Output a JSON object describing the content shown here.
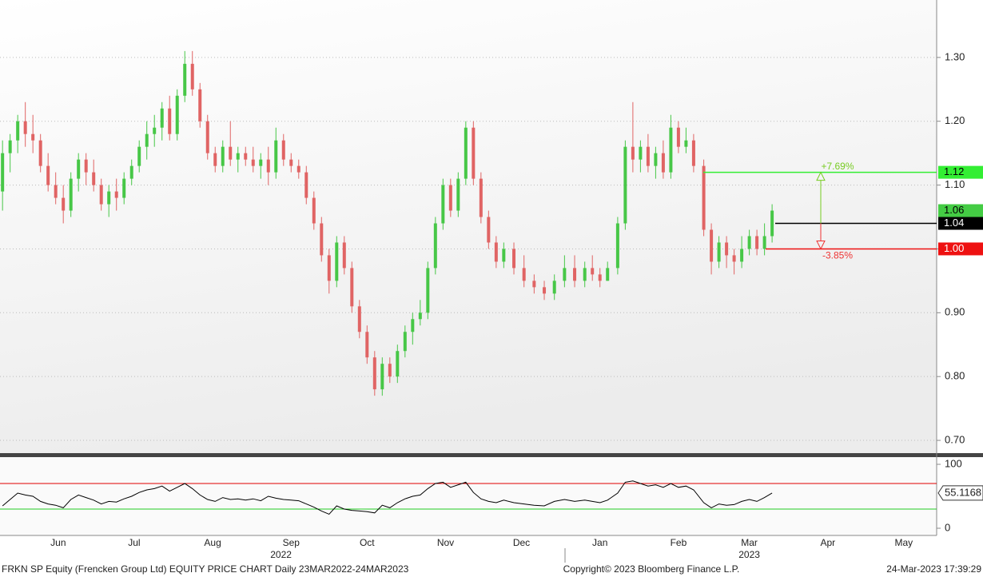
{
  "chart_data": [
    {
      "type": "candlestick",
      "x": [
        1,
        4,
        7,
        10,
        13,
        16,
        19,
        22,
        25,
        28,
        31,
        34,
        37,
        40,
        43,
        46,
        49,
        52,
        55,
        58,
        61,
        64,
        67,
        70,
        73,
        76,
        79,
        82,
        85,
        88,
        91,
        94,
        97,
        100,
        103,
        106,
        109,
        112,
        115,
        118,
        121,
        124,
        127,
        130,
        133,
        136,
        139,
        142,
        145,
        148,
        151,
        154,
        157,
        160,
        163,
        166,
        169,
        172,
        175,
        178,
        181,
        184,
        187,
        190,
        193,
        196,
        199,
        203,
        207,
        211,
        215,
        219,
        223,
        227,
        231,
        234,
        237,
        240,
        244,
        247,
        250,
        253,
        256,
        259,
        262,
        265,
        268,
        271,
        274,
        278,
        281,
        284,
        287,
        290,
        293,
        296,
        299,
        302,
        305
      ],
      "open": [
        1.09,
        1.15,
        1.17,
        1.2,
        1.18,
        1.17,
        1.13,
        1.1,
        1.08,
        1.06,
        1.11,
        1.14,
        1.12,
        1.1,
        1.07,
        1.09,
        1.08,
        1.11,
        1.13,
        1.16,
        1.18,
        1.19,
        1.22,
        1.18,
        1.24,
        1.29,
        1.25,
        1.2,
        1.15,
        1.13,
        1.16,
        1.14,
        1.15,
        1.14,
        1.13,
        1.14,
        1.12,
        1.17,
        1.14,
        1.13,
        1.12,
        1.08,
        1.04,
        0.99,
        0.95,
        1.01,
        0.97,
        0.91,
        0.87,
        0.83,
        0.78,
        0.82,
        0.8,
        0.84,
        0.87,
        0.89,
        0.9,
        0.97,
        1.04,
        1.1,
        1.06,
        1.11,
        1.19,
        1.11,
        1.05,
        1.01,
        0.98,
        1.0,
        0.97,
        0.95,
        0.94,
        0.93,
        0.95,
        0.97,
        0.95,
        0.97,
        0.96,
        0.95,
        0.97,
        1.04,
        1.16,
        1.14,
        1.16,
        1.13,
        1.15,
        1.12,
        1.19,
        1.16,
        1.17,
        1.13,
        1.03,
        0.98,
        1.01,
        0.99,
        0.98,
        1.0,
        1.02,
        1.0,
        1.02
      ],
      "high": [
        1.17,
        1.18,
        1.21,
        1.23,
        1.21,
        1.18,
        1.15,
        1.12,
        1.1,
        1.12,
        1.15,
        1.15,
        1.14,
        1.11,
        1.1,
        1.11,
        1.12,
        1.14,
        1.17,
        1.2,
        1.21,
        1.23,
        1.24,
        1.25,
        1.31,
        1.31,
        1.26,
        1.21,
        1.16,
        1.17,
        1.2,
        1.16,
        1.16,
        1.16,
        1.15,
        1.16,
        1.19,
        1.18,
        1.15,
        1.14,
        1.13,
        1.09,
        1.05,
        1.0,
        1.02,
        1.02,
        0.98,
        0.92,
        0.88,
        0.84,
        0.83,
        0.83,
        0.85,
        0.88,
        0.9,
        0.92,
        0.98,
        1.05,
        1.11,
        1.11,
        1.12,
        1.2,
        1.2,
        1.12,
        1.06,
        1.02,
        1.01,
        1.01,
        0.99,
        0.96,
        0.95,
        0.96,
        0.99,
        0.99,
        0.98,
        0.99,
        0.97,
        0.98,
        1.05,
        1.17,
        1.23,
        1.17,
        1.18,
        1.16,
        1.17,
        1.21,
        1.2,
        1.19,
        1.18,
        1.14,
        1.04,
        1.02,
        1.02,
        1.0,
        1.02,
        1.03,
        1.03,
        1.04,
        1.07
      ],
      "low": [
        1.06,
        1.12,
        1.15,
        1.16,
        1.15,
        1.12,
        1.09,
        1.07,
        1.04,
        1.05,
        1.09,
        1.1,
        1.09,
        1.06,
        1.05,
        1.06,
        1.07,
        1.1,
        1.12,
        1.14,
        1.16,
        1.17,
        1.17,
        1.17,
        1.23,
        1.24,
        1.19,
        1.14,
        1.12,
        1.12,
        1.13,
        1.12,
        1.13,
        1.12,
        1.11,
        1.1,
        1.11,
        1.13,
        1.12,
        1.11,
        1.07,
        1.03,
        0.98,
        0.93,
        0.94,
        0.96,
        0.9,
        0.86,
        0.82,
        0.77,
        0.77,
        0.79,
        0.79,
        0.83,
        0.85,
        0.88,
        0.89,
        0.96,
        1.03,
        1.05,
        1.05,
        1.1,
        1.1,
        1.04,
        1.0,
        0.97,
        0.97,
        0.96,
        0.94,
        0.93,
        0.92,
        0.92,
        0.94,
        0.94,
        0.94,
        0.95,
        0.94,
        0.95,
        0.96,
        1.03,
        1.12,
        1.12,
        1.12,
        1.11,
        1.11,
        1.11,
        1.15,
        1.15,
        1.12,
        1.02,
        0.96,
        0.97,
        0.97,
        0.96,
        0.97,
        0.99,
        0.99,
        0.99,
        1.01
      ],
      "close": [
        1.15,
        1.17,
        1.2,
        1.18,
        1.17,
        1.13,
        1.1,
        1.08,
        1.06,
        1.11,
        1.14,
        1.12,
        1.1,
        1.07,
        1.09,
        1.08,
        1.11,
        1.13,
        1.16,
        1.18,
        1.19,
        1.22,
        1.18,
        1.24,
        1.29,
        1.25,
        1.2,
        1.15,
        1.13,
        1.16,
        1.14,
        1.15,
        1.14,
        1.13,
        1.14,
        1.12,
        1.17,
        1.14,
        1.13,
        1.12,
        1.08,
        1.04,
        0.99,
        0.95,
        1.01,
        0.97,
        0.91,
        0.87,
        0.83,
        0.78,
        0.82,
        0.8,
        0.84,
        0.87,
        0.89,
        0.9,
        0.97,
        1.04,
        1.1,
        1.06,
        1.11,
        1.19,
        1.11,
        1.05,
        1.01,
        0.98,
        1.0,
        0.97,
        0.95,
        0.94,
        0.93,
        0.95,
        0.97,
        0.95,
        0.97,
        0.96,
        0.95,
        0.97,
        1.04,
        1.16,
        1.14,
        1.16,
        1.13,
        1.15,
        1.12,
        1.19,
        1.16,
        1.17,
        1.13,
        1.03,
        0.98,
        1.01,
        0.99,
        0.98,
        1.0,
        1.02,
        1.0,
        1.02,
        1.06
      ],
      "up_color": "#47c747",
      "down_color": "#e06464",
      "xlim": [
        0,
        370
      ],
      "ylim": [
        0.68,
        1.39
      ],
      "yticks": [
        {
          "value": 0.7,
          "label": "0.70"
        },
        {
          "value": 0.8,
          "label": "0.80"
        },
        {
          "value": 0.9,
          "label": "0.90"
        },
        {
          "value": 1.0,
          "label": "1.00"
        },
        {
          "value": 1.1,
          "label": "1.10"
        },
        {
          "value": 1.2,
          "label": "1.20"
        },
        {
          "value": 1.3,
          "label": "1.30"
        }
      ],
      "xticks": [
        {
          "value": 23,
          "label": "Jun"
        },
        {
          "value": 53,
          "label": "Jul"
        },
        {
          "value": 84,
          "label": "Aug"
        },
        {
          "value": 115,
          "label": "Sep"
        },
        {
          "value": 145,
          "label": "Oct"
        },
        {
          "value": 176,
          "label": "Nov"
        },
        {
          "value": 206,
          "label": "Dec"
        },
        {
          "value": 237,
          "label": "Jan"
        },
        {
          "value": 268,
          "label": "Feb"
        },
        {
          "value": 296,
          "label": "Mar"
        },
        {
          "value": 327,
          "label": "Apr"
        },
        {
          "value": 357,
          "label": "May"
        }
      ],
      "year_ticks": [
        {
          "value": 111,
          "label": "2022"
        },
        {
          "value": 296,
          "label": "2023"
        }
      ],
      "levels": [
        {
          "value": 1.12,
          "label": "1.12",
          "color": "#33ee33"
        },
        {
          "value": 1.06,
          "label": "1.06",
          "color": "#44cc44"
        },
        {
          "value": 1.04,
          "label": "1.04",
          "color": "#000000"
        },
        {
          "value": 1.0,
          "label": "1.00",
          "color": "#ee1111"
        }
      ],
      "annotations": [
        {
          "text": "+7.69%",
          "color": "#77cc22"
        },
        {
          "text": "-3.85%",
          "color": "#ee3333"
        }
      ],
      "grid": true
    },
    {
      "type": "line",
      "x": [
        1,
        4,
        7,
        10,
        13,
        16,
        19,
        22,
        25,
        28,
        31,
        34,
        37,
        40,
        43,
        46,
        49,
        52,
        55,
        58,
        61,
        64,
        67,
        70,
        73,
        76,
        79,
        82,
        85,
        88,
        91,
        94,
        97,
        100,
        103,
        106,
        109,
        112,
        115,
        118,
        121,
        124,
        127,
        130,
        133,
        136,
        139,
        142,
        145,
        148,
        151,
        154,
        157,
        160,
        163,
        166,
        169,
        172,
        175,
        178,
        181,
        184,
        187,
        190,
        193,
        196,
        199,
        203,
        207,
        211,
        215,
        219,
        223,
        227,
        231,
        234,
        237,
        240,
        244,
        247,
        250,
        253,
        256,
        259,
        262,
        265,
        268,
        271,
        274,
        278,
        281,
        284,
        287,
        290,
        293,
        296,
        299,
        302,
        305
      ],
      "values": [
        35,
        45,
        55,
        52,
        50,
        42,
        38,
        36,
        32,
        45,
        52,
        48,
        44,
        38,
        42,
        41,
        46,
        50,
        56,
        60,
        62,
        66,
        58,
        64,
        70,
        62,
        52,
        45,
        42,
        48,
        45,
        46,
        44,
        46,
        43,
        50,
        47,
        45,
        44,
        43,
        38,
        33,
        27,
        22,
        35,
        30,
        28,
        27,
        26,
        24,
        36,
        32,
        40,
        46,
        50,
        52,
        62,
        70,
        72,
        64,
        68,
        72,
        56,
        46,
        42,
        40,
        44,
        40,
        38,
        36,
        35,
        42,
        45,
        42,
        44,
        42,
        40,
        44,
        55,
        72,
        74,
        70,
        66,
        68,
        64,
        70,
        64,
        66,
        60,
        40,
        32,
        38,
        36,
        37,
        42,
        45,
        42,
        48,
        55.1168
      ],
      "color": "#000000",
      "xlim": [
        0,
        370
      ],
      "ylim": [
        -11.25,
        111.25
      ],
      "yticks": [
        0,
        100
      ],
      "levels": [
        {
          "value": 70,
          "color": "#e00000"
        },
        {
          "value": 30,
          "color": "#22cc22"
        }
      ]
    }
  ],
  "footer": {
    "left": "FRKN SP Equity (Frencken Group Ltd) EQUITY PRICE CHART  Daily 23MAR2022-24MAR2023",
    "center": "Copyright© 2023 Bloomberg Finance L.P.",
    "right": "24-Mar-2023 17:39:29"
  }
}
